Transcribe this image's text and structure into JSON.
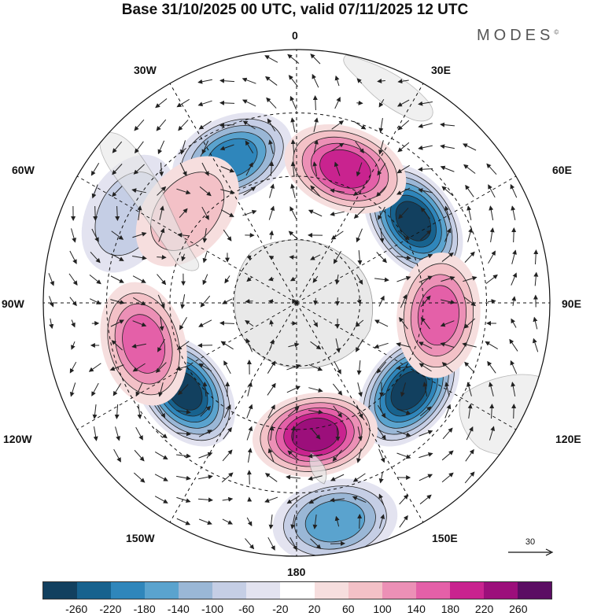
{
  "title": "Base 31/10/2025 00 UTC, valid 07/11/2025 12 UTC",
  "brand": "MODES",
  "brand_mark": "©",
  "longitude_labels": {
    "top": "0",
    "upper_left": "30W",
    "upper_right": "30E",
    "left_upper": "60W",
    "right_upper": "60E",
    "left": "90W",
    "right": "90E",
    "left_lower": "120W",
    "right_lower": "120E",
    "lower_left": "150W",
    "lower_right": "150E",
    "bottom": "180"
  },
  "reference_vector": {
    "value": "30"
  },
  "colorbar": {
    "colors": [
      "#12405f",
      "#17628e",
      "#2f86bb",
      "#5aa3ce",
      "#9ab7d6",
      "#c5cee5",
      "#e3e3f0",
      "#ffffff",
      "#f6dede",
      "#f3c1c7",
      "#ec90b6",
      "#e460a8",
      "#c9238f",
      "#9c0f7b",
      "#5b0d63"
    ],
    "tick_labels": [
      "-260",
      "-220",
      "-180",
      "-140",
      "-100",
      "-60",
      "-20",
      "20",
      "60",
      "100",
      "140",
      "180",
      "220",
      "260"
    ]
  },
  "anomaly_centers": [
    {
      "kind": "negative",
      "lon": -24,
      "lat": -40,
      "value": -200
    },
    {
      "kind": "negative",
      "lon": 55,
      "lat": -45,
      "value": -260
    },
    {
      "kind": "negative",
      "lon": -128,
      "lat": -45,
      "value": -260
    },
    {
      "kind": "negative",
      "lon": 128,
      "lat": -45,
      "value": -260
    },
    {
      "kind": "negative",
      "lon": -62,
      "lat": -30,
      "value": -80
    },
    {
      "kind": "negative",
      "lon": 170,
      "lat": -20,
      "value": -140
    },
    {
      "kind": "positive",
      "lon": 20,
      "lat": -45,
      "value": 200
    },
    {
      "kind": "positive",
      "lon": 95,
      "lat": -45,
      "value": 160
    },
    {
      "kind": "positive",
      "lon": -105,
      "lat": -40,
      "value": 140
    },
    {
      "kind": "positive",
      "lon": 172,
      "lat": -48,
      "value": 240
    },
    {
      "kind": "positive",
      "lon": -50,
      "lat": -45,
      "value": 80
    }
  ]
}
